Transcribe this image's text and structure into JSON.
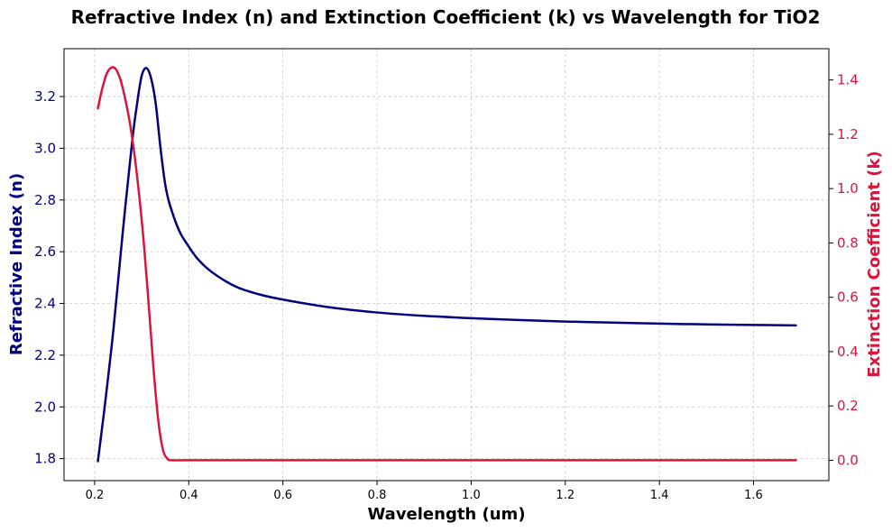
{
  "chart_data": {
    "type": "line",
    "title": "Refractive Index (n) and Extinction Coefficient (k) vs Wavelength for TiO2",
    "xlabel": "Wavelength (um)",
    "ylabel_left": "Refractive Index (n)",
    "ylabel_right": "Extinction Coefficient (k)",
    "xlim": [
      0.135,
      1.76
    ],
    "ylim_left": [
      1.715,
      3.385
    ],
    "ylim_right": [
      -0.075,
      1.515
    ],
    "x_ticks": [
      "0.2",
      "0.4",
      "0.6",
      "0.8",
      "1.0",
      "1.2",
      "1.4",
      "1.6"
    ],
    "y_left_ticks": [
      "1.8",
      "2.0",
      "2.2",
      "2.4",
      "2.6",
      "2.8",
      "3.0",
      "3.2"
    ],
    "y_right_ticks": [
      "0.0",
      "0.2",
      "0.4",
      "0.6",
      "0.8",
      "1.0",
      "1.2",
      "1.4"
    ],
    "grid": true,
    "colors": {
      "n": "#000080",
      "k": "#dc143c"
    },
    "series": [
      {
        "name": "Refractive Index (n)",
        "axis": "left",
        "x": [
          0.207,
          0.22,
          0.24,
          0.26,
          0.28,
          0.29,
          0.3,
          0.31,
          0.32,
          0.33,
          0.34,
          0.35,
          0.36,
          0.38,
          0.4,
          0.42,
          0.45,
          0.5,
          0.55,
          0.6,
          0.7,
          0.8,
          0.9,
          1.0,
          1.1,
          1.2,
          1.3,
          1.4,
          1.5,
          1.6,
          1.69
        ],
        "values": [
          1.79,
          1.98,
          2.3,
          2.68,
          3.03,
          3.17,
          3.28,
          3.31,
          3.27,
          3.17,
          3.0,
          2.86,
          2.78,
          2.68,
          2.62,
          2.57,
          2.52,
          2.465,
          2.435,
          2.415,
          2.385,
          2.365,
          2.352,
          2.343,
          2.336,
          2.33,
          2.326,
          2.322,
          2.319,
          2.317,
          2.315
        ]
      },
      {
        "name": "Extinction Coefficient (k)",
        "axis": "right",
        "x": [
          0.207,
          0.215,
          0.225,
          0.235,
          0.245,
          0.255,
          0.265,
          0.275,
          0.285,
          0.295,
          0.305,
          0.315,
          0.325,
          0.335,
          0.345,
          0.355,
          0.365,
          0.4,
          0.6,
          0.8,
          1.0,
          1.2,
          1.4,
          1.6,
          1.69
        ],
        "values": [
          1.295,
          1.36,
          1.42,
          1.445,
          1.44,
          1.4,
          1.33,
          1.24,
          1.12,
          0.97,
          0.79,
          0.57,
          0.34,
          0.15,
          0.04,
          0.005,
          0.0,
          0.0,
          0.0,
          0.0,
          0.0,
          0.0,
          0.0,
          0.0,
          0.0
        ]
      }
    ]
  }
}
